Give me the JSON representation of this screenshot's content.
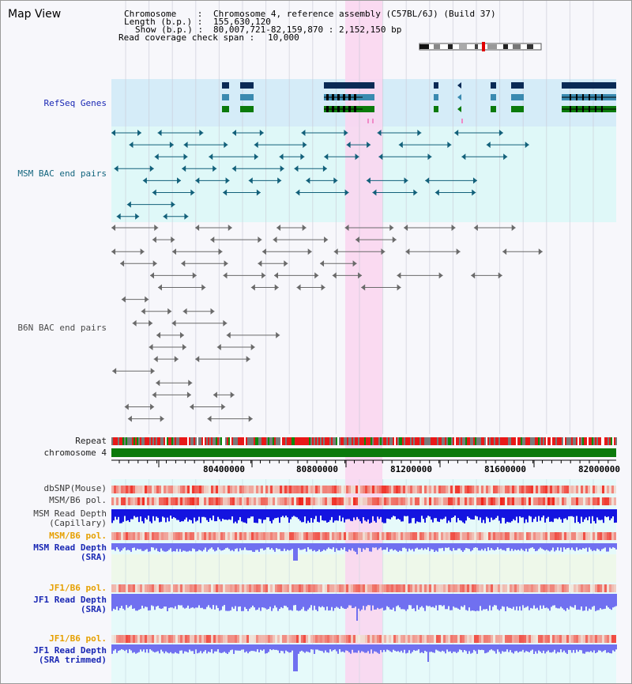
{
  "page": {
    "title": "Map View"
  },
  "info": {
    "chromosome_label": "Chromosome    :",
    "chromosome_value": "Chromosome 4, reference assembly (C57BL/6J) (Build 37)",
    "length_label": "Length (b.p.) :",
    "length_value": "155,630,120",
    "show_label": "Show (b.p.) :",
    "show_value": "80,007,721-82,159,870 : 2,152,150 bp",
    "coverage_label": "Read coverage check span :",
    "coverage_value": "10,000"
  },
  "tracks": {
    "refseq": "RefSeq Genes",
    "msm_bac": "MSM BAC end pairs",
    "b6n_bac": "B6N BAC end pairs",
    "repeat": "Repeat",
    "chromosome": "chromosome 4",
    "dbsnp": "dbSNP(Mouse)",
    "msm_b6_pol_1": "MSM/B6 pol.",
    "msm_depth_cap_1": "MSM Read Depth",
    "msm_depth_cap_2": "(Capillary)",
    "msm_b6_pol_2": "MSM/B6 pol.",
    "msm_depth_sra_1": "MSM Read Depth",
    "msm_depth_sra_2": "(SRA)",
    "jf1_b6_pol_1": "JF1/B6 pol.",
    "jf1_depth_sra_1": "JF1 Read Depth",
    "jf1_depth_sra_2": "(SRA)",
    "jf1_b6_pol_2": "JF1/B6 pol.",
    "jf1_depth_trim_1": "JF1 Read Depth",
    "jf1_depth_trim_2": "(SRA trimmed)"
  },
  "axis": {
    "ticks": [
      "80400000",
      "80800000",
      "81200000",
      "81600000",
      "82000000"
    ]
  },
  "colors": {
    "refseq_bg": "#d5ecf8",
    "msm_bac_bg": "#dff8f8",
    "highlight": "#f9d6f0",
    "gene_dark": "#0a2a55",
    "chromosome_bar": "#0b7a0b",
    "read_depth_capillary": "#1414e0",
    "read_depth_sra": "#7070f0",
    "polymorphism": "#f06060"
  }
}
